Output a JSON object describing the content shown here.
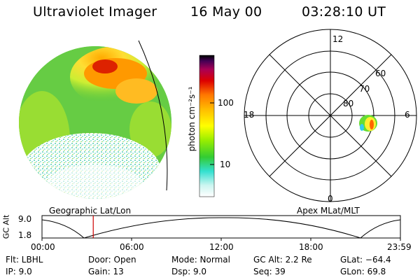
{
  "header": {
    "instrument": "Ultraviolet Imager",
    "date": "16 May 00",
    "time": "03:28:10 UT"
  },
  "colorbar": {
    "label": "photon cm⁻²s⁻¹",
    "ticks": [
      "100",
      "10"
    ]
  },
  "polar_plot": {
    "mlt_labels": [
      "12",
      "18",
      "6",
      "0"
    ],
    "lat_labels": [
      "60",
      "70",
      "80"
    ]
  },
  "orbit_panel": {
    "ylabel": "GC Alt",
    "yticks": [
      "9.0",
      "1.8"
    ],
    "left_caption": "Geographic Lat/Lon",
    "right_caption": "Apex MLat/MLT",
    "time_ticks": [
      "00:00",
      "06:00",
      "12:00",
      "18:00",
      "23:59"
    ],
    "current_time_fraction": 0.143
  },
  "info": {
    "flt": "Flt: LBHL",
    "ip": "IP:  9.0",
    "door": "Door: Open",
    "gain": "Gain: 13",
    "mode": "Mode: Normal",
    "dsp": "Dsp:     9.0",
    "gcalt": "GC Alt: 2.2 Re",
    "seq": "Seq: 39",
    "glat": "GLat: −64.4",
    "glon": "GLon:  69.8"
  },
  "colors": {
    "aurora_peak": "#cc0000",
    "aurora_high": "#ff8800",
    "aurora_mid": "#ffff00",
    "aurora_low": "#33cc33",
    "background_low": "#ccffee",
    "marker": "#cc0000"
  }
}
